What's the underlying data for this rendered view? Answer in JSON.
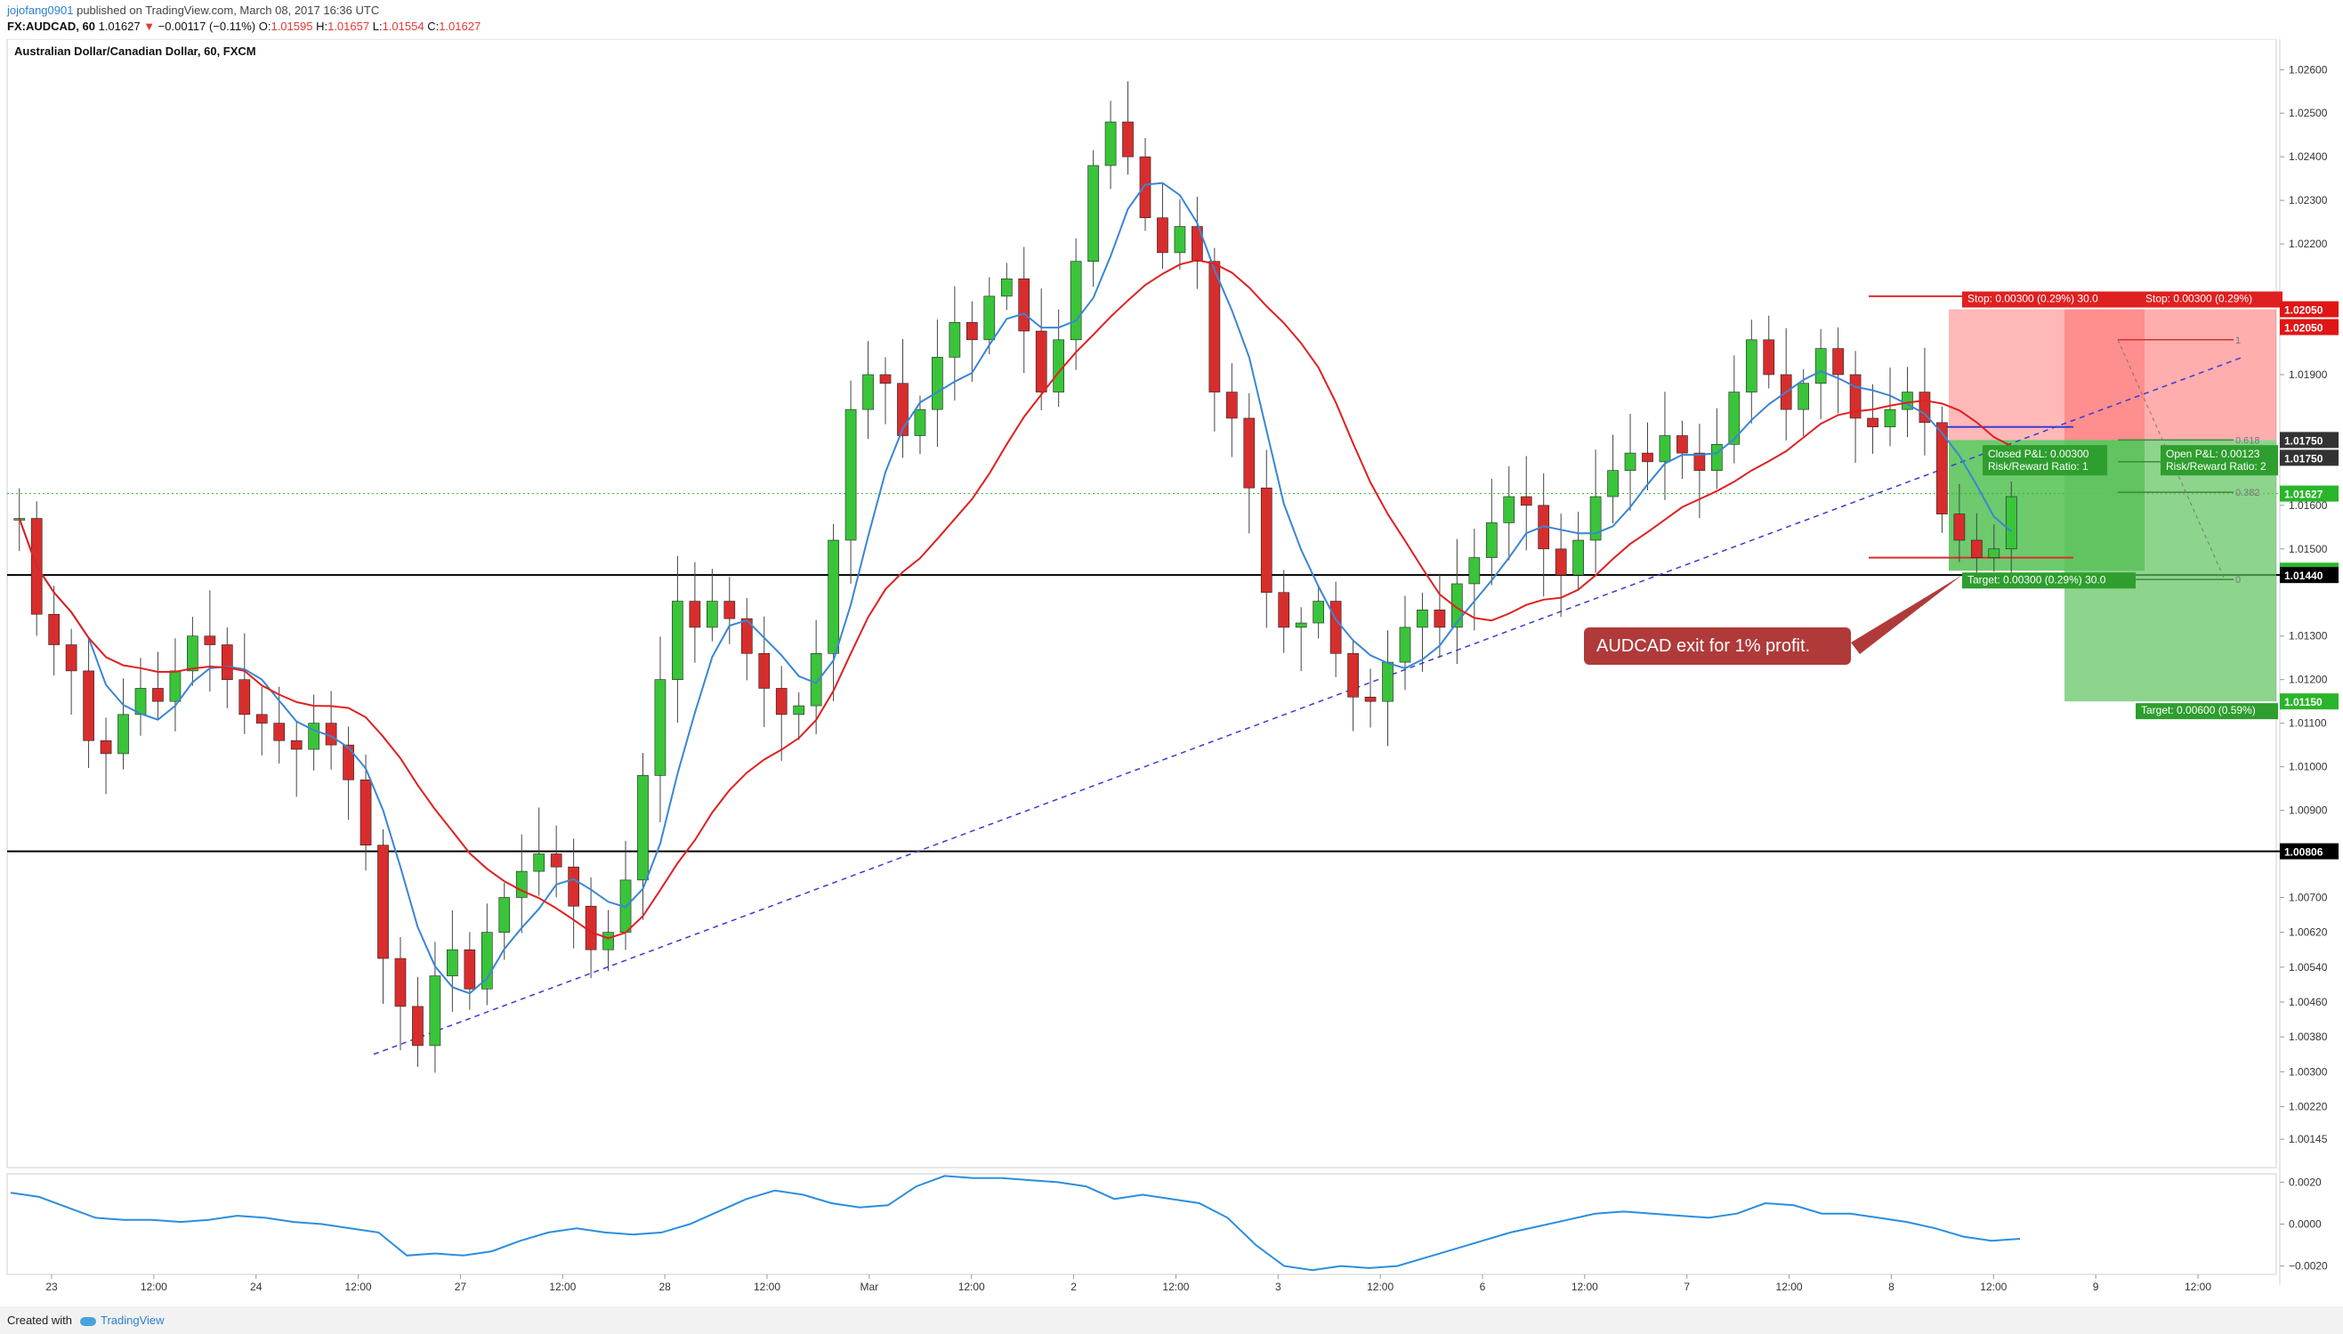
{
  "header": {
    "author": "jojofang0901",
    "published_text": "published on TradingView.com, March 08, 2017 16:36 UTC",
    "symbol": "FX:AUDCAD, 60",
    "price": "1.01627",
    "change_arrow": "▼",
    "change": "−0.00117 (−0.11%)",
    "open_label": "O:",
    "open": "1.01595",
    "high_label": "H:",
    "high": "1.01657",
    "low_label": "L:",
    "low": "1.01554",
    "close_label": "C:",
    "close": "1.01627"
  },
  "footer": {
    "created_with": "Created with",
    "brand": "TradingView"
  },
  "colors": {
    "bull": "#3ac43a",
    "bear": "#d82d2d",
    "ma_fast": "#3a86d4",
    "ma_slow": "#e02020",
    "trendline": "#3b3bd6",
    "stop_zone": "#ff9a9a",
    "target_zone": "#3cb83c",
    "callout": "#b03a3a",
    "horizontal": "#000000",
    "current_price": "#2ab52a"
  },
  "chart_data": [
    {
      "type": "candlestick",
      "title": "Australian Dollar/Canadian Dollar, 60, FXCM",
      "ylim": [
        1.0008,
        1.0267
      ],
      "y_ticks": [
        "1.02600",
        "1.02500",
        "1.02400",
        "1.02300",
        "1.02200",
        "1.02000",
        "1.01900",
        "1.01700",
        "1.01600",
        "1.01500",
        "1.01300",
        "1.01200",
        "1.01100",
        "1.01000",
        "1.00900",
        "1.00700",
        "1.00620",
        "1.00540",
        "1.00460",
        "1.00380",
        "1.00300",
        "1.00220",
        "1.00145"
      ],
      "x_labels": [
        "23",
        "12:00",
        "24",
        "12:00",
        "27",
        "12:00",
        "28",
        "12:00",
        "Mar",
        "12:00",
        "2",
        "12:00",
        "3",
        "12:00",
        "6",
        "12:00",
        "7",
        "12:00",
        "8",
        "12:00",
        "9",
        "12:00"
      ],
      "price_path": [
        1.0157,
        1.0135,
        1.0128,
        1.0122,
        1.0106,
        1.0103,
        1.0112,
        1.0118,
        1.0115,
        1.0122,
        1.013,
        1.0128,
        1.012,
        1.0112,
        1.011,
        1.0106,
        1.0104,
        1.011,
        1.0105,
        1.0097,
        1.0082,
        1.0056,
        1.0045,
        1.0036,
        1.0052,
        1.0058,
        1.0049,
        1.0062,
        1.007,
        1.0076,
        1.008,
        1.0077,
        1.0068,
        1.0058,
        1.0062,
        1.0074,
        1.0098,
        1.012,
        1.0138,
        1.0132,
        1.0138,
        1.0134,
        1.0126,
        1.0118,
        1.0112,
        1.0114,
        1.0126,
        1.0152,
        1.0182,
        1.019,
        1.0188,
        1.0176,
        1.0182,
        1.0194,
        1.0202,
        1.0198,
        1.0208,
        1.0212,
        1.02,
        1.0186,
        1.0198,
        1.0216,
        1.0238,
        1.0248,
        1.024,
        1.0226,
        1.0218,
        1.0224,
        1.0216,
        1.0186,
        1.018,
        1.0164,
        1.014,
        1.0132,
        1.0133,
        1.0138,
        1.0126,
        1.0116,
        1.0115,
        1.0124,
        1.0132,
        1.0136,
        1.0132,
        1.0142,
        1.0148,
        1.0156,
        1.0162,
        1.016,
        1.015,
        1.0144,
        1.0152,
        1.0162,
        1.0168,
        1.0172,
        1.017,
        1.0176,
        1.0172,
        1.0168,
        1.0174,
        1.0186,
        1.0198,
        1.019,
        1.0182,
        1.0188,
        1.0196,
        1.019,
        1.018,
        1.0178,
        1.0182,
        1.0186,
        1.0179,
        1.0158,
        1.0152,
        1.0148,
        1.015,
        1.0162
      ],
      "series": [
        {
          "name": "",
          "role": "fast_ma"
        },
        {
          "name": "",
          "role": "slow_ma"
        }
      ],
      "horizontal_lines": [
        1.0144,
        1.00806
      ],
      "price_labels": [
        {
          "value": 1.0205,
          "text": "1.02050",
          "color": "#e01515"
        },
        {
          "value": 1.0205,
          "text": "1.02050",
          "color": "#e01515"
        },
        {
          "value": 1.0175,
          "text": "1.01750",
          "color": "#333333"
        },
        {
          "value": 1.0175,
          "text": "1.01750",
          "color": "#333333"
        },
        {
          "value": 1.01627,
          "text": "1.01627",
          "color": "#2ab52a"
        },
        {
          "value": 1.0145,
          "text": "1.01450",
          "color": "#2ab52a"
        },
        {
          "value": 1.0144,
          "text": "1.01440",
          "color": "#000000"
        },
        {
          "value": 1.0115,
          "text": "1.01150",
          "color": "#2ab52a"
        },
        {
          "value": 1.00806,
          "text": "1.00806",
          "color": "#000000"
        }
      ],
      "positions": [
        {
          "kind": "closed",
          "stop_text": "Stop: 0.00300 (0.29%) 30.0",
          "pnl_text": "Closed P&L: 0.00300",
          "rr_text": "Risk/Reward Ratio: 1",
          "target_text": "Target: 0.00300 (0.29%) 30.0"
        },
        {
          "kind": "open",
          "stop_text": "Stop: 0.00300 (0.29%)",
          "pnl_text": "Open P&L: 0.00123",
          "rr_text": "Risk/Reward Ratio: 2",
          "target_text": "Target: 0.00600 (0.59%)"
        }
      ],
      "fib_labels": [
        "1",
        "0.618",
        "0.5",
        "0.382",
        "0"
      ],
      "annotation": "AUDCAD exit for 1% profit."
    },
    {
      "type": "line",
      "title": "",
      "ylim": [
        -0.0024,
        0.0024
      ],
      "y_ticks": [
        "0.0020",
        "0.0000",
        "−0.0020"
      ],
      "values": [
        0.0015,
        0.0013,
        0.0008,
        0.0003,
        0.0002,
        0.0002,
        0.0001,
        0.0002,
        0.0004,
        0.0003,
        0.0001,
        0.0,
        -0.0002,
        -0.0004,
        -0.0015,
        -0.0014,
        -0.0015,
        -0.0013,
        -0.0008,
        -0.0004,
        -0.0002,
        -0.0004,
        -0.0005,
        -0.0004,
        0.0,
        0.0006,
        0.0012,
        0.0016,
        0.0014,
        0.001,
        0.0008,
        0.0009,
        0.0018,
        0.0023,
        0.0022,
        0.0022,
        0.0021,
        0.002,
        0.0018,
        0.0012,
        0.0014,
        0.0012,
        0.001,
        0.0003,
        -0.001,
        -0.002,
        -0.0022,
        -0.002,
        -0.0021,
        -0.002,
        -0.0016,
        -0.0012,
        -0.0008,
        -0.0004,
        -0.0001,
        0.0002,
        0.0005,
        0.0006,
        0.0005,
        0.0004,
        0.0003,
        0.0005,
        0.001,
        0.0009,
        0.0005,
        0.0005,
        0.0003,
        0.0001,
        -0.0002,
        -0.0006,
        -0.0008,
        -0.0007
      ]
    }
  ]
}
